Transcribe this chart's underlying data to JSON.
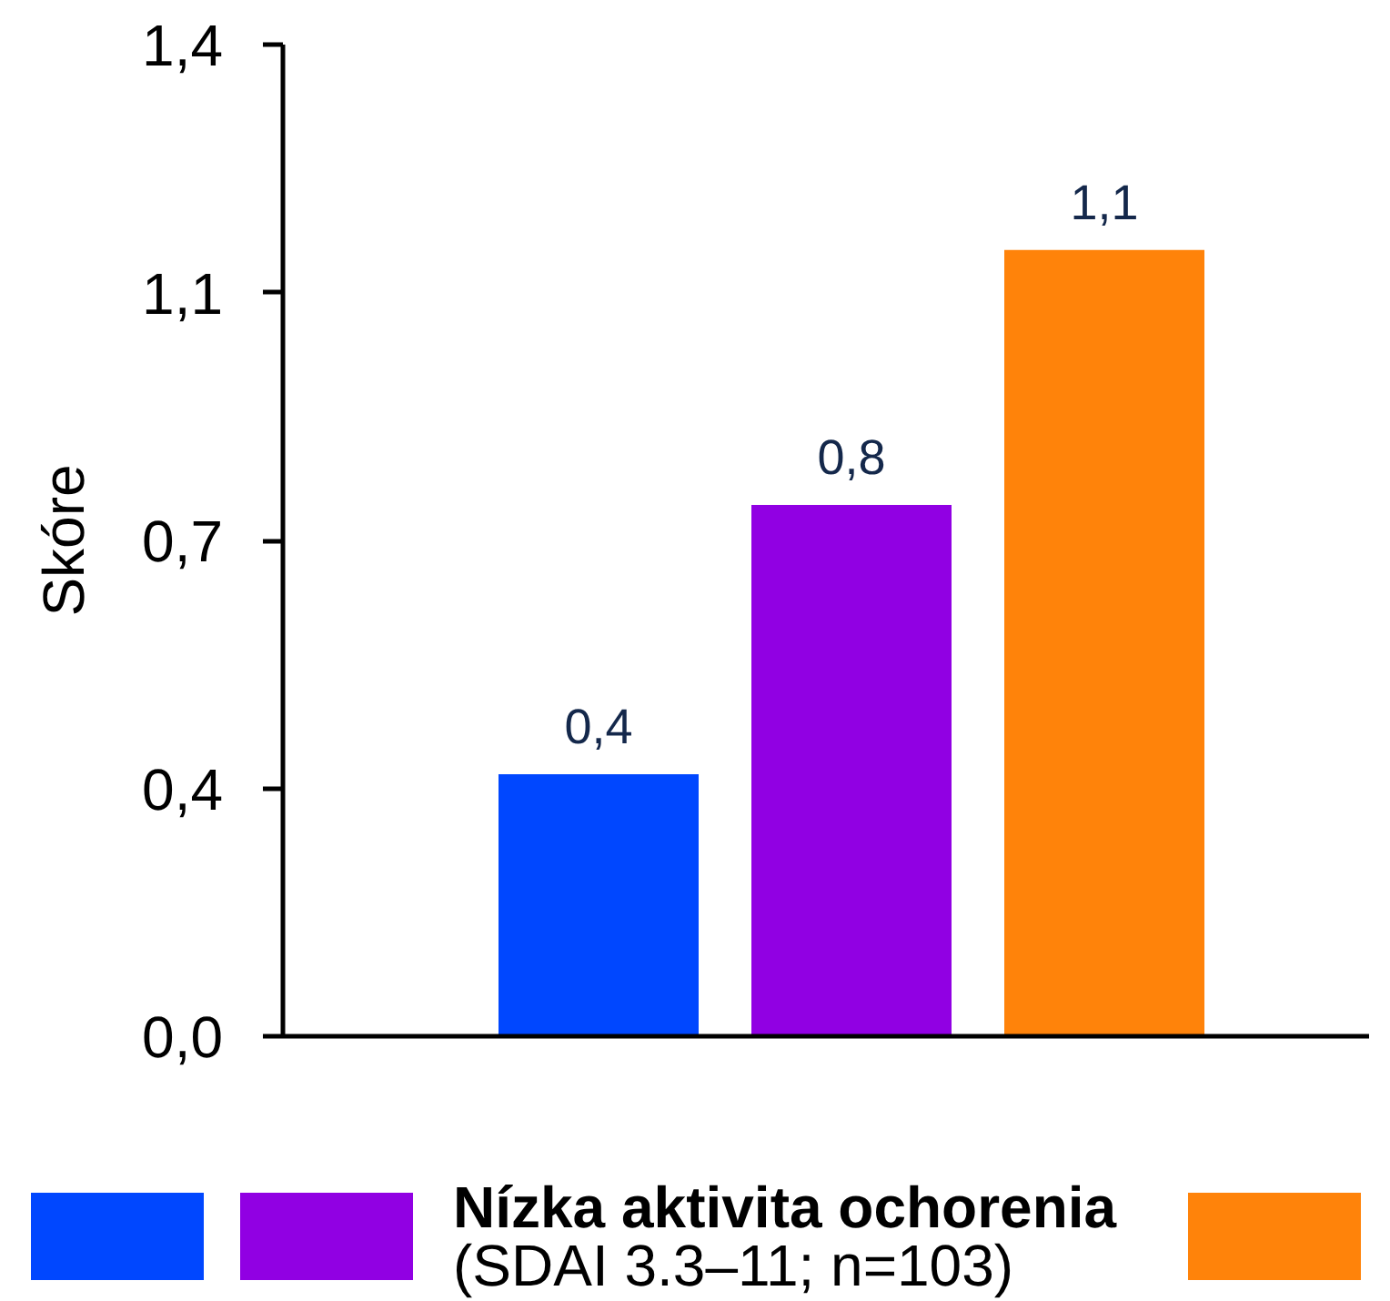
{
  "chart_data": {
    "type": "bar",
    "ylabel": "Skóre",
    "categories": [
      null
    ],
    "series": [
      {
        "color": "#0047ff",
        "values": [
          0.37
        ],
        "value_labels": [
          "0,4"
        ]
      },
      {
        "name": "Nízka aktivita ochorenia\n(SDAI 3.3–11; n=103)",
        "color": "#9100e3",
        "values": [
          0.75
        ],
        "value_labels": [
          "0,8"
        ]
      },
      {
        "color": "#ff830a",
        "values": [
          1.11
        ],
        "value_labels": [
          "1,1"
        ]
      }
    ],
    "ylim": [
      0,
      1.4
    ],
    "yticks": [
      {
        "value": 0,
        "label": "0,0"
      },
      {
        "value": 0.35,
        "label": "0,4"
      },
      {
        "value": 0.7,
        "label": "0,7"
      },
      {
        "value": 1.05,
        "label": "1,1"
      },
      {
        "value": 1.4,
        "label": "1,4"
      }
    ],
    "legend": "bottom"
  }
}
